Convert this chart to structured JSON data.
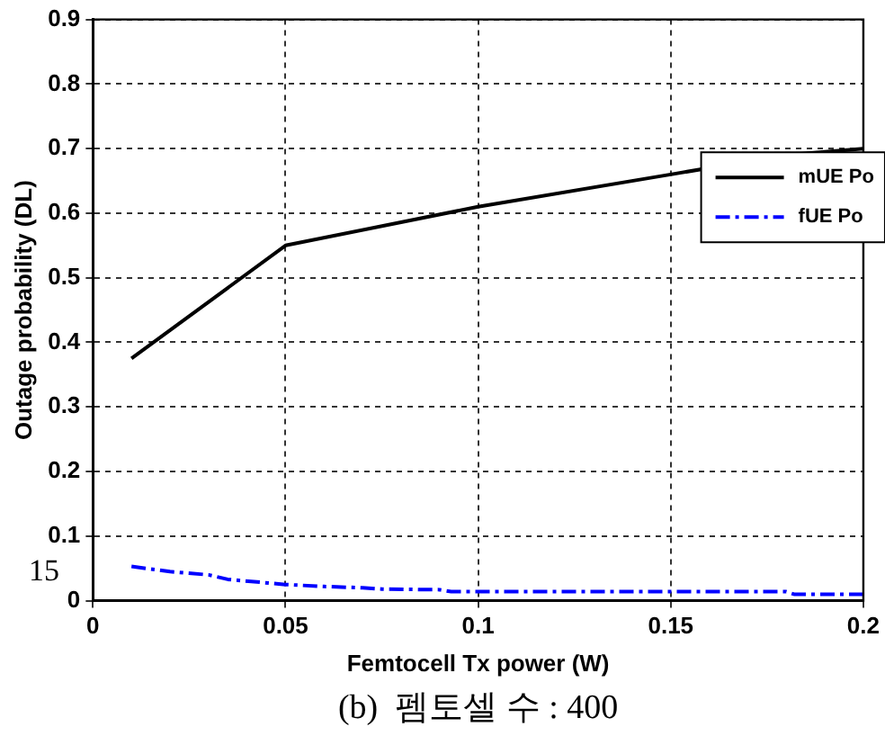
{
  "chart_data": {
    "type": "line",
    "xlabel": "Femtocell Tx power (W)",
    "ylabel": "Outage probability (DL)",
    "annotations": [
      "15",
      "(b)  펨토셀 수 : 400"
    ],
    "xlim": [
      0,
      0.2
    ],
    "xticks": [
      0,
      0.05,
      0.1,
      0.15,
      0.2
    ],
    "ylim": [
      0,
      0.9
    ],
    "yticks": [
      0,
      0.1,
      0.2,
      0.3,
      0.4,
      0.5,
      0.6,
      0.7,
      0.8,
      0.9
    ],
    "grid": true,
    "legend": "right",
    "marker": "none",
    "series": [
      {
        "name": "mUE Po",
        "color": "#000000",
        "line_style": "solid",
        "x": [
          0.01,
          0.05,
          0.1,
          0.15,
          0.18,
          0.19,
          0.2
        ],
        "values": [
          0.375,
          0.55,
          0.61,
          0.66,
          0.69,
          0.695,
          0.7
        ]
      },
      {
        "name": "fUE Po",
        "color": "#0000ff",
        "line_style": "dashed",
        "x": [
          0.01,
          0.02,
          0.03,
          0.035,
          0.05,
          0.06,
          0.07,
          0.075,
          0.09,
          0.093,
          0.15,
          0.18,
          0.182,
          0.2
        ],
        "values": [
          0.053,
          0.045,
          0.04,
          0.033,
          0.025,
          0.022,
          0.02,
          0.018,
          0.017,
          0.014,
          0.014,
          0.014,
          0.01,
          0.01
        ]
      }
    ]
  }
}
